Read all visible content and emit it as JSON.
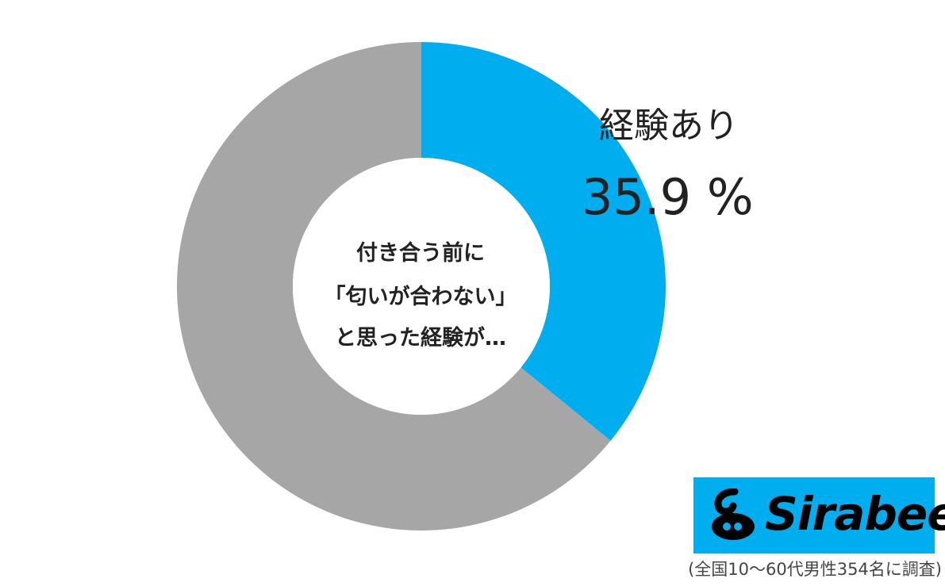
{
  "chart_data": {
    "type": "pie",
    "donut": true,
    "center_text": [
      "付き合う前に",
      "「匂いが合わない」",
      "と思った経験が…"
    ],
    "slices": [
      {
        "label": "経験あり",
        "value": 35.9,
        "value_text": "35.9 %",
        "color": "#00aeef"
      },
      {
        "value": 64.1,
        "color": "#a6a6a6"
      }
    ]
  },
  "logo": {
    "text": "Sirabee",
    "background": "#00aeef"
  },
  "footnote": "(全国10～60代男性354名に調査)"
}
